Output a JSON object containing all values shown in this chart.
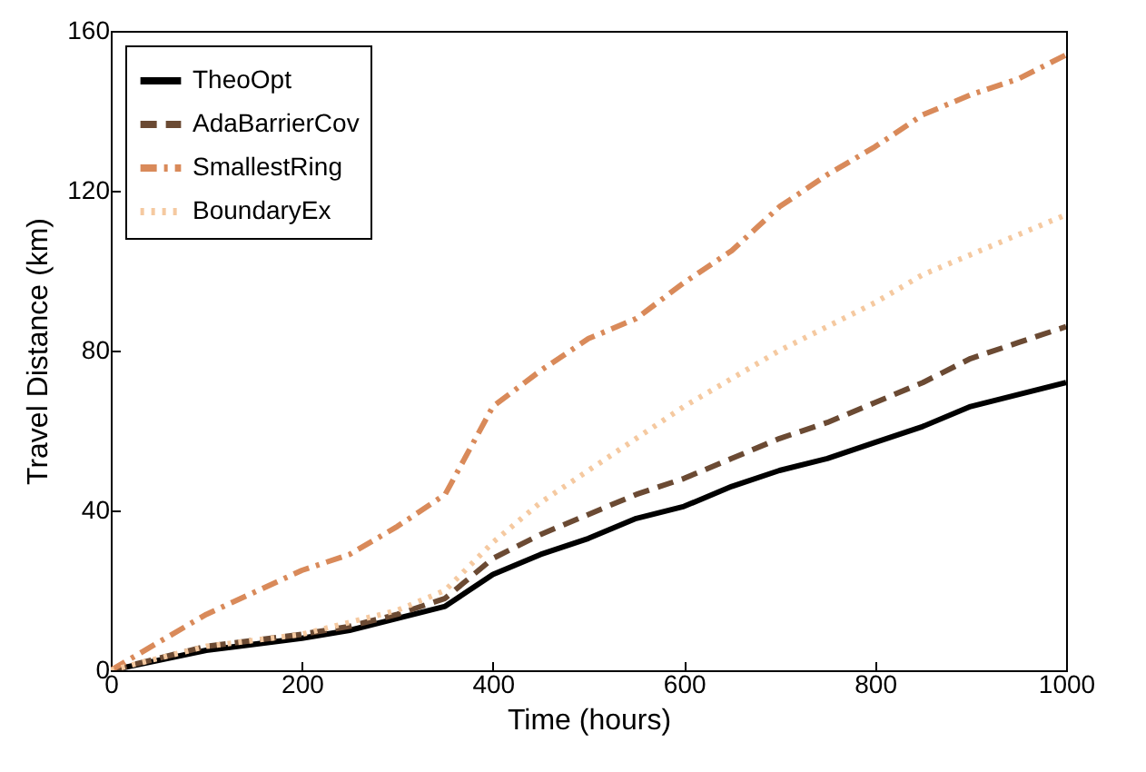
{
  "chart_data": {
    "type": "line",
    "xlabel": "Time (hours)",
    "ylabel": "Travel Distance (km)",
    "x": [
      0,
      100,
      200,
      250,
      300,
      350,
      400,
      450,
      500,
      550,
      600,
      650,
      700,
      750,
      800,
      850,
      900,
      950,
      1000
    ],
    "xlim": [
      0,
      1000
    ],
    "xticks": [
      0,
      200,
      400,
      600,
      800,
      1000
    ],
    "ylim": [
      0,
      160
    ],
    "yticks": [
      0,
      40,
      80,
      120,
      160
    ],
    "grid": false,
    "legend": "top left",
    "marker": "none",
    "series": [
      {
        "name": "TheoOpt",
        "color": "#000000",
        "line_style": "solid",
        "values": [
          0,
          5,
          8,
          10,
          13,
          16,
          24,
          29,
          33,
          38,
          41,
          46,
          50,
          53,
          57,
          61,
          66,
          69,
          72
        ]
      },
      {
        "name": "AdaBarrierCov",
        "color": "#6b4a33",
        "line_style": "dashed",
        "values": [
          0,
          6,
          9,
          11,
          14,
          18,
          28,
          34,
          39,
          44,
          48,
          53,
          58,
          62,
          67,
          72,
          78,
          82,
          86
        ]
      },
      {
        "name": "SmallestRing",
        "color": "#d98a5a",
        "line_style": "dashdot",
        "values": [
          0,
          14,
          25,
          29,
          36,
          44,
          66,
          75,
          83,
          88,
          97,
          105,
          116,
          124,
          131,
          139,
          144,
          148,
          154
        ]
      },
      {
        "name": "BoundaryEx",
        "color": "#f5c9a0",
        "line_style": "dotted",
        "values": [
          0,
          6,
          9,
          12,
          15,
          20,
          32,
          42,
          50,
          58,
          66,
          73,
          80,
          86,
          92,
          99,
          104,
          109,
          114
        ]
      }
    ]
  }
}
